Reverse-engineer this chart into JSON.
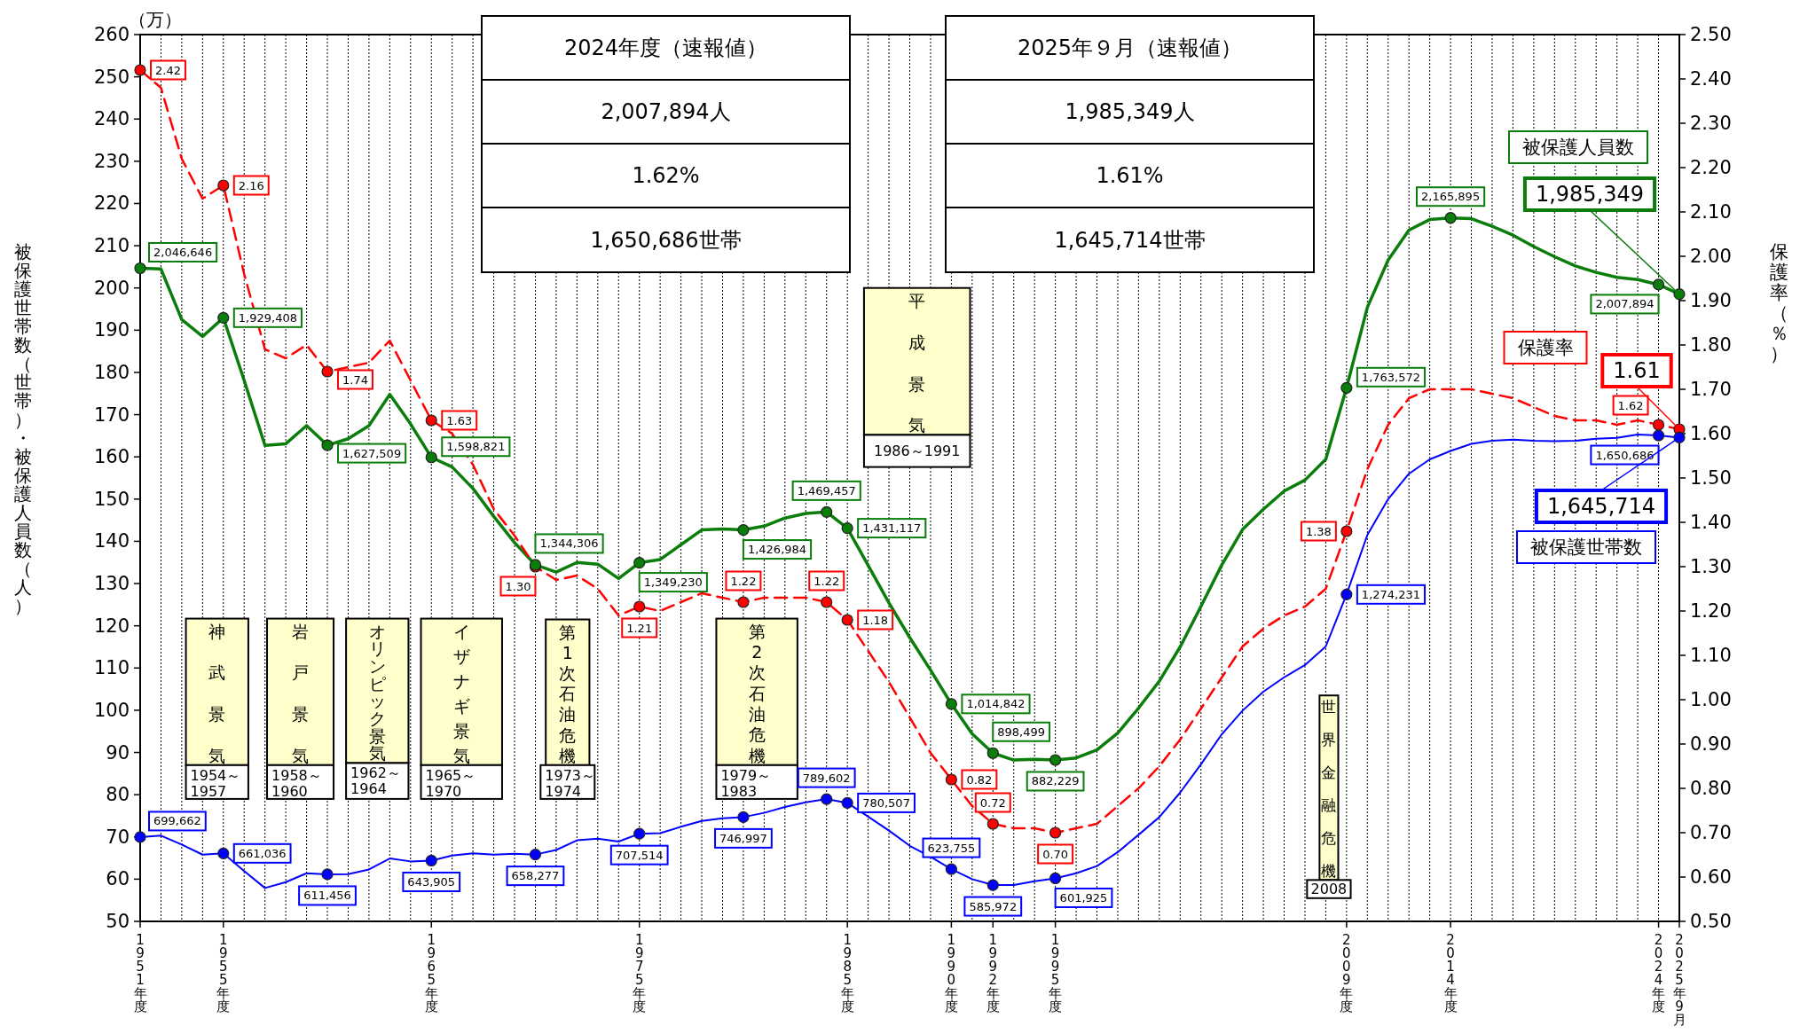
{
  "chart_data": {
    "type": "line",
    "ylabel": "被保護世帯数（世帯）・被保護人員数（人）",
    "y2label": "保護率（％）",
    "categories": [
      "1951年度",
      null,
      null,
      null,
      "1955年度",
      null,
      null,
      null,
      null,
      null,
      null,
      null,
      null,
      null,
      "1965年度",
      null,
      null,
      null,
      null,
      null,
      null,
      null,
      null,
      null,
      "1975年度",
      null,
      null,
      null,
      null,
      null,
      null,
      null,
      null,
      null,
      "1985年度",
      null,
      null,
      null,
      null,
      "1990年度",
      null,
      "1992年度",
      null,
      null,
      "1995年度",
      null,
      null,
      null,
      null,
      null,
      null,
      null,
      null,
      null,
      null,
      null,
      null,
      null,
      "2009年度",
      null,
      null,
      null,
      null,
      "2014年度",
      null,
      null,
      null,
      null,
      null,
      null,
      null,
      null,
      null,
      "2024年度",
      "2025年9月"
    ],
    "ylim": [
      50,
      260
    ],
    "yticks": [
      50,
      60,
      70,
      80,
      90,
      100,
      110,
      120,
      130,
      140,
      150,
      160,
      170,
      180,
      190,
      200,
      210,
      220,
      230,
      240,
      250,
      260
    ],
    "y2lim": [
      0.5,
      2.5
    ],
    "y2ticks": [
      {
        "value": 0.5,
        "label": "0.50"
      },
      {
        "value": 0.6,
        "label": "0.60"
      },
      {
        "value": 0.7,
        "label": "0.70"
      },
      {
        "value": 0.8,
        "label": "0.80"
      },
      {
        "value": 0.9,
        "label": "0.90"
      },
      {
        "value": 1.0,
        "label": "1.00"
      },
      {
        "value": 1.1,
        "label": "1.10"
      },
      {
        "value": 1.2,
        "label": "1.20"
      },
      {
        "value": 1.3,
        "label": "1.30"
      },
      {
        "value": 1.4,
        "label": "1.40"
      },
      {
        "value": 1.5,
        "label": "1.50"
      },
      {
        "value": 1.6,
        "label": "1.60"
      },
      {
        "value": 1.7,
        "label": "1.70"
      },
      {
        "value": 1.8,
        "label": "1.80"
      },
      {
        "value": 1.9,
        "label": "1.90"
      },
      {
        "value": 2.0,
        "label": "2.00"
      },
      {
        "value": 2.1,
        "label": "2.10"
      },
      {
        "value": 2.2,
        "label": "2.20"
      },
      {
        "value": 2.3,
        "label": "2.30"
      },
      {
        "value": 2.4,
        "label": "2.40"
      },
      {
        "value": 2.5,
        "label": "2.50"
      }
    ],
    "grid": "x",
    "series": [
      {
        "name": "被保護人員数",
        "color": "#0a7d0a",
        "line_style": "solid",
        "values": [
          204.6646,
          204.5,
          192.5,
          188.5,
          192.9408,
          178.1,
          162.7,
          163.1,
          167.4,
          162.7509,
          164.3,
          167.4,
          174.8,
          167.8,
          159.8821,
          157.6,
          152.5,
          145.9,
          139.7,
          134.4306,
          132.7,
          135.0,
          134.6,
          131.2,
          134.923,
          135.7,
          139.2,
          142.7,
          142.9,
          142.6984,
          143.6,
          145.5,
          146.6,
          146.9457,
          143.1117,
          134.3,
          125.4,
          117.2,
          109.5,
          101.4842,
          94.4,
          89.8499,
          88.2,
          88.4,
          88.2229,
          88.7,
          90.6,
          94.6,
          100.5,
          106.9,
          115.0,
          124.6,
          134.4,
          142.8,
          147.6,
          151.9,
          154.5,
          159.4,
          176.3572,
          195.4,
          206.6,
          213.7,
          216.2,
          216.5895,
          216.4,
          214.6,
          212.5,
          209.8,
          207.4,
          205.2,
          203.7,
          202.5,
          202.0,
          200.7894,
          198.5349
        ]
      },
      {
        "name": "保護率",
        "color": "#ff0000",
        "axis": "y2",
        "line_style": "dashed",
        "values": [
          2.42,
          2.38,
          2.22,
          2.13,
          2.16,
          1.96,
          1.79,
          1.77,
          1.8,
          1.74,
          1.75,
          1.76,
          1.81,
          1.72,
          1.63,
          1.6,
          1.53,
          1.43,
          1.37,
          1.3,
          1.27,
          1.28,
          1.25,
          1.19,
          1.21,
          1.2,
          1.22,
          1.24,
          1.23,
          1.22,
          1.23,
          1.23,
          1.23,
          1.22,
          1.18,
          1.11,
          1.04,
          0.96,
          0.88,
          0.82,
          0.76,
          0.72,
          0.71,
          0.71,
          0.7,
          0.71,
          0.72,
          0.76,
          0.8,
          0.85,
          0.91,
          0.98,
          1.05,
          1.12,
          1.16,
          1.19,
          1.21,
          1.25,
          1.38,
          1.52,
          1.62,
          1.68,
          1.7,
          1.7,
          1.7,
          1.69,
          1.68,
          1.66,
          1.64,
          1.63,
          1.63,
          1.62,
          1.63,
          1.62,
          1.61
        ],
        "value_labels": [
          "2.42",
          null,
          null,
          null,
          "2.16",
          null,
          null,
          null,
          null,
          "1.74",
          null,
          null,
          null,
          null,
          "1.63",
          null,
          null,
          null,
          null,
          "1.30",
          null,
          null,
          null,
          null,
          "1.21",
          null,
          null,
          null,
          null,
          "1.22",
          null,
          null,
          null,
          "1.22",
          "1.18",
          null,
          null,
          null,
          null,
          "0.82",
          null,
          "0.72",
          null,
          null,
          "0.70",
          null,
          null,
          null,
          null,
          null,
          null,
          null,
          null,
          null,
          null,
          null,
          null,
          null,
          "1.38",
          null,
          null,
          null,
          null,
          null,
          null,
          null,
          null,
          null,
          null,
          null,
          null,
          null,
          null,
          "1.62",
          "1.61"
        ]
      },
      {
        "name": "被保護世帯数",
        "color": "#0000ff",
        "line_style": "solid",
        "values": [
          69.9662,
          70.3,
          68.2,
          65.8,
          66.1036,
          61.9,
          57.9,
          59.3,
          61.4,
          61.1456,
          61.2,
          62.3,
          64.9,
          64.2,
          64.3905,
          65.6,
          66.1,
          65.8,
          66.0,
          65.8277,
          66.9,
          69.2,
          69.6,
          68.9,
          70.7514,
          70.9,
          72.4,
          73.8,
          74.4,
          74.6997,
          75.7,
          77.1,
          78.2,
          78.9602,
          78.0507,
          74.8,
          71.5,
          67.9,
          65.3,
          62.3755,
          60.0,
          58.5972,
          58.6,
          59.5,
          60.1925,
          61.4,
          63.1,
          66.4,
          70.5,
          74.7,
          80.5,
          87.2,
          94.3,
          99.9,
          104.4,
          107.8,
          110.7,
          115.1,
          127.4231,
          141.5,
          150.0,
          156.0,
          159.4,
          161.4,
          163.1,
          163.8,
          164.1,
          163.8,
          163.7,
          163.8,
          164.3,
          164.5,
          165.3,
          165.0686,
          164.5714
        ]
      }
    ],
    "annotations": [
      "2024年度（速報値）",
      "2,007,894人",
      "1.62%",
      "1,650,686世帯",
      "2025年９月（速報値）",
      "1,985,349人",
      "1.61%",
      "1,645,714世帯",
      "（万）",
      "神武景気",
      "1954～1957",
      "岩戸景気",
      "1958～1960",
      "オリンピック景気",
      "1962～1964",
      "イザナギ景気",
      "1965～1970",
      "第1次石油危機",
      "1973～1974",
      "第2次石油危機",
      "1979～1983",
      "平成景気",
      "1986～1991",
      "世界金融危機",
      "2008",
      {
        "text": "2,046,646",
        "x": "1951年度",
        "y": 204.6646
      },
      {
        "text": "1,929,408",
        "x": "1955年度",
        "y": 192.9408
      },
      "1,627,509",
      {
        "text": "1,598,821",
        "x": "1965年度",
        "y": 159.8821
      },
      {
        "text": "1,344,306",
        "y": 134.4306
      },
      {
        "text": "1,349,230",
        "x": "1975年度",
        "y": 134.923
      },
      "1,426,984",
      {
        "text": "1,469,457",
        "y": 146.9457
      },
      {
        "text": "1,431,117",
        "x": "1985年度",
        "y": 143.1117
      },
      {
        "text": "1,014,842",
        "x": "1990年度",
        "y": 101.4842
      },
      {
        "text": "898,499",
        "x": "1992年度",
        "y": 89.8499
      },
      {
        "text": "882,229",
        "x": "1995年度",
        "y": 88.2229
      },
      {
        "text": "1,763,572",
        "x": "2009年度",
        "y": 176.3572
      },
      {
        "text": "2,165,895",
        "x": "2014年度",
        "y": 216.5895
      },
      {
        "text": "2,007,894",
        "x": "2024年度",
        "y": 200.7894
      },
      {
        "text": "1,985,349",
        "x": "2025年9月",
        "y": 198.5349
      },
      {
        "text": "699,662",
        "x": "1951年度",
        "y": 69.9662
      },
      {
        "text": "661,036",
        "x": "1955年度",
        "y": 66.1036
      },
      {
        "text": "611,456",
        "y": 61.1456
      },
      {
        "text": "643,905",
        "x": "1965年度",
        "y": 64.3905
      },
      {
        "text": "658,277",
        "y": 65.8277
      },
      {
        "text": "707,514",
        "x": "1975年度",
        "y": 70.7514
      },
      {
        "text": "746,997",
        "y": 74.6997
      },
      {
        "text": "789,602",
        "y": 78.9602
      },
      {
        "text": "780,507",
        "x": "1985年度",
        "y": 78.0507
      },
      {
        "text": "623,755",
        "x": "1990年度",
        "y": 62.3755
      },
      {
        "text": "585,972",
        "x": "1992年度",
        "y": 58.5972
      },
      {
        "text": "601,925",
        "x": "1995年度",
        "y": 60.1925
      },
      {
        "text": "1,274,231",
        "x": "2009年度",
        "y": 127.4231
      },
      {
        "text": "1,650,686",
        "x": "2024年度",
        "y": 165.0686
      },
      {
        "text": "1,645,714",
        "x": "2025年9月",
        "y": 164.5714
      }
    ]
  }
}
